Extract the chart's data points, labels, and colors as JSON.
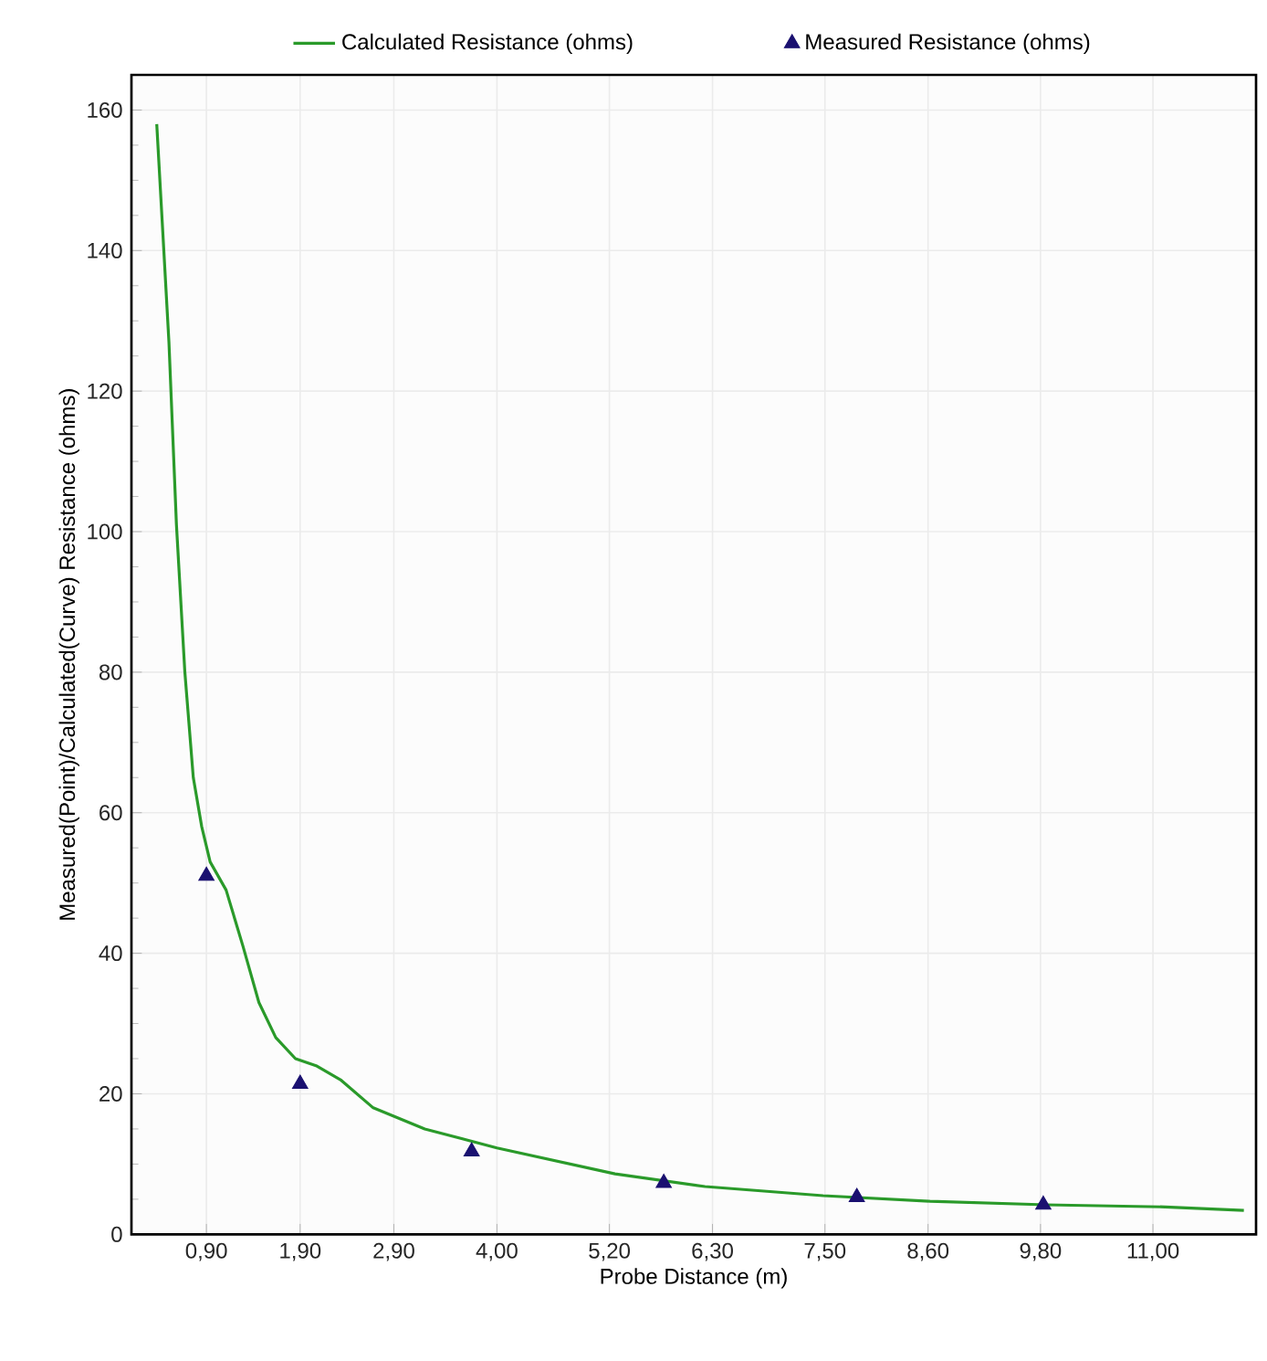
{
  "chart_data": {
    "type": "line",
    "xlabel": "Probe Distance (m)",
    "ylabel": "Measured(Point)/Calculated(Curve) Resistance (ohms)",
    "xlim": [
      0.1,
      12.1
    ],
    "ylim": [
      0,
      165
    ],
    "xticks": [
      {
        "value": 0.9,
        "label": "0,90"
      },
      {
        "value": 1.9,
        "label": "1,90"
      },
      {
        "value": 2.9,
        "label": "2,90"
      },
      {
        "value": 4.0,
        "label": "4,00"
      },
      {
        "value": 5.2,
        "label": "5,20"
      },
      {
        "value": 6.3,
        "label": "6,30"
      },
      {
        "value": 7.5,
        "label": "7,50"
      },
      {
        "value": 8.6,
        "label": "8,60"
      },
      {
        "value": 9.8,
        "label": "9,80"
      },
      {
        "value": 11.0,
        "label": "11,00"
      }
    ],
    "yticks": [
      0,
      20,
      40,
      60,
      80,
      100,
      120,
      140,
      160
    ],
    "grid": true,
    "legend": "top",
    "series": [
      {
        "name": "Calculated Resistance (ohms)",
        "color": "#2a9a2a",
        "line_style": "solid",
        "marker": "none",
        "x": [
          0.37,
          0.5,
          0.58,
          0.67,
          0.76,
          0.85,
          0.94,
          1.11,
          1.29,
          1.46,
          1.64,
          1.85,
          2.07,
          2.33,
          2.68,
          3.23,
          4.0,
          5.26,
          6.22,
          7.48,
          8.62,
          9.86,
          11.13,
          11.97
        ],
        "values": [
          158,
          127,
          101,
          80,
          65,
          58,
          53,
          49,
          41,
          33,
          28,
          25,
          24,
          22,
          18,
          15,
          12.3,
          8.6,
          6.8,
          5.5,
          4.7,
          4.2,
          3.9,
          3.4
        ]
      },
      {
        "name": "Measured Resistance (ohms)",
        "type": "scatter",
        "color": "#1a1070",
        "marker": "triangle",
        "x": [
          0.9,
          1.9,
          3.73,
          5.78,
          7.84,
          9.83
        ],
        "values": [
          51,
          21.4,
          11.8,
          7.3,
          5.3,
          4.2
        ]
      }
    ]
  }
}
